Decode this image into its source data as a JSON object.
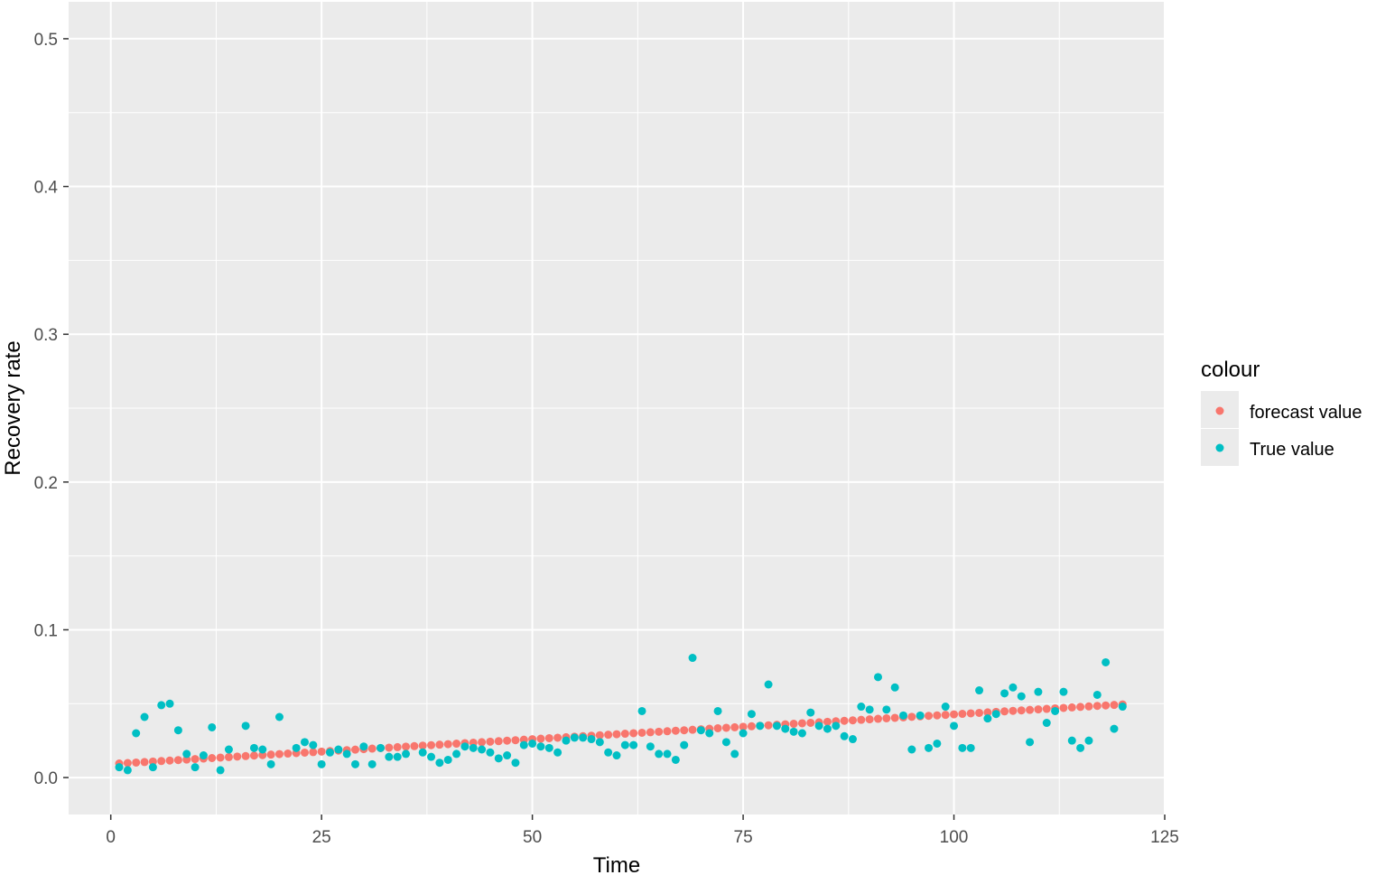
{
  "chart_data": {
    "type": "scatter",
    "title": "",
    "xlabel": "Time",
    "ylabel": "Recovery rate",
    "xlim": [
      -5,
      125
    ],
    "ylim": [
      -0.025,
      0.525
    ],
    "x_ticks": [
      0,
      25,
      50,
      75,
      100,
      125
    ],
    "x_tick_labels": [
      "0",
      "25",
      "50",
      "75",
      "100",
      "125"
    ],
    "y_ticks": [
      0.0,
      0.1,
      0.2,
      0.3,
      0.4,
      0.5
    ],
    "y_tick_labels": [
      "0.0",
      "0.1",
      "0.2",
      "0.3",
      "0.4",
      "0.5"
    ],
    "grid": true,
    "panel_background": "#ebebeb",
    "grid_color": "#ffffff",
    "legend": {
      "title": "colour",
      "placement": "right",
      "entries": [
        {
          "label": "forecast value",
          "color": "#F8766D"
        },
        {
          "label": "True value",
          "color": "#00BFC4"
        }
      ]
    },
    "series": [
      {
        "name": "forecast value",
        "color": "#F8766D",
        "x_start": 1,
        "x_end": 120,
        "y_start": 0.0095,
        "y_end": 0.0495
      },
      {
        "name": "True value",
        "color": "#00BFC4",
        "points": [
          [
            1,
            0.007
          ],
          [
            2,
            0.005
          ],
          [
            3,
            0.03
          ],
          [
            4,
            0.041
          ],
          [
            5,
            0.007
          ],
          [
            6,
            0.049
          ],
          [
            7,
            0.05
          ],
          [
            8,
            0.032
          ],
          [
            9,
            0.016
          ],
          [
            10,
            0.007
          ],
          [
            11,
            0.015
          ],
          [
            12,
            0.034
          ],
          [
            13,
            0.005
          ],
          [
            14,
            0.019
          ],
          [
            16,
            0.035
          ],
          [
            17,
            0.02
          ],
          [
            18,
            0.019
          ],
          [
            19,
            0.009
          ],
          [
            20,
            0.041
          ],
          [
            22,
            0.02
          ],
          [
            23,
            0.024
          ],
          [
            24,
            0.022
          ],
          [
            25,
            0.009
          ],
          [
            26,
            0.017
          ],
          [
            27,
            0.019
          ],
          [
            28,
            0.016
          ],
          [
            29,
            0.009
          ],
          [
            30,
            0.021
          ],
          [
            31,
            0.009
          ],
          [
            32,
            0.02
          ],
          [
            33,
            0.014
          ],
          [
            34,
            0.014
          ],
          [
            35,
            0.016
          ],
          [
            37,
            0.017
          ],
          [
            38,
            0.014
          ],
          [
            39,
            0.01
          ],
          [
            40,
            0.012
          ],
          [
            41,
            0.016
          ],
          [
            42,
            0.021
          ],
          [
            43,
            0.02
          ],
          [
            44,
            0.019
          ],
          [
            45,
            0.017
          ],
          [
            46,
            0.013
          ],
          [
            47,
            0.015
          ],
          [
            48,
            0.01
          ],
          [
            49,
            0.022
          ],
          [
            50,
            0.023
          ],
          [
            51,
            0.021
          ],
          [
            52,
            0.02
          ],
          [
            53,
            0.017
          ],
          [
            54,
            0.025
          ],
          [
            55,
            0.027
          ],
          [
            56,
            0.027
          ],
          [
            57,
            0.026
          ],
          [
            58,
            0.024
          ],
          [
            59,
            0.017
          ],
          [
            60,
            0.015
          ],
          [
            61,
            0.022
          ],
          [
            62,
            0.022
          ],
          [
            63,
            0.045
          ],
          [
            64,
            0.021
          ],
          [
            65,
            0.016
          ],
          [
            66,
            0.016
          ],
          [
            67,
            0.012
          ],
          [
            68,
            0.022
          ],
          [
            69,
            0.081
          ],
          [
            70,
            0.032
          ],
          [
            71,
            0.03
          ],
          [
            72,
            0.045
          ],
          [
            73,
            0.024
          ],
          [
            74,
            0.016
          ],
          [
            75,
            0.03
          ],
          [
            76,
            0.043
          ],
          [
            77,
            0.035
          ],
          [
            78,
            0.063
          ],
          [
            79,
            0.035
          ],
          [
            80,
            0.033
          ],
          [
            81,
            0.031
          ],
          [
            82,
            0.03
          ],
          [
            83,
            0.044
          ],
          [
            84,
            0.035
          ],
          [
            85,
            0.033
          ],
          [
            86,
            0.035
          ],
          [
            87,
            0.028
          ],
          [
            88,
            0.026
          ],
          [
            89,
            0.048
          ],
          [
            90,
            0.046
          ],
          [
            91,
            0.068
          ],
          [
            92,
            0.046
          ],
          [
            93,
            0.061
          ],
          [
            94,
            0.042
          ],
          [
            95,
            0.019
          ],
          [
            96,
            0.042
          ],
          [
            97,
            0.02
          ],
          [
            98,
            0.023
          ],
          [
            99,
            0.048
          ],
          [
            100,
            0.035
          ],
          [
            101,
            0.02
          ],
          [
            102,
            0.02
          ],
          [
            103,
            0.059
          ],
          [
            104,
            0.04
          ],
          [
            105,
            0.043
          ],
          [
            106,
            0.057
          ],
          [
            107,
            0.061
          ],
          [
            108,
            0.055
          ],
          [
            109,
            0.024
          ],
          [
            110,
            0.058
          ],
          [
            111,
            0.037
          ],
          [
            112,
            0.045
          ],
          [
            113,
            0.058
          ],
          [
            114,
            0.025
          ],
          [
            115,
            0.02
          ],
          [
            116,
            0.025
          ],
          [
            117,
            0.056
          ],
          [
            118,
            0.078
          ],
          [
            119,
            0.033
          ],
          [
            120,
            0.048
          ]
        ]
      }
    ]
  }
}
